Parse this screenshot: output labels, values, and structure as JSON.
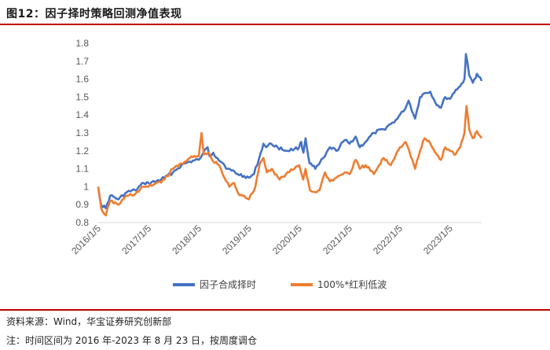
{
  "header": {
    "title": "图12：因子择时策略回测净值表现"
  },
  "footer": {
    "source": "资料来源：Wind，华宝证券研究创新部",
    "note": "注：时间区间为 2016 年-2023 年 8 月 23 日，按周度调仓"
  },
  "colors": {
    "accent": "#c00000",
    "series1": "#4472c4",
    "series2": "#ed7d31"
  },
  "chart_data": {
    "type": "line",
    "title": "",
    "xlabel": "",
    "ylabel": "",
    "ylim": [
      0.8,
      1.8
    ],
    "yticks": [
      "0.8",
      "0.9",
      "1",
      "1.1",
      "1.2",
      "1.3",
      "1.4",
      "1.5",
      "1.6",
      "1.7",
      "1.8"
    ],
    "xticks": [
      "2016/1/5",
      "2017/1/5",
      "2018/1/5",
      "2019/1/5",
      "2020/1/5",
      "2021/1/5",
      "2022/1/5",
      "2023/1/5"
    ],
    "grid": false,
    "legend": "bottom",
    "series": [
      {
        "name": "因子合成择时",
        "color": "#4472c4",
        "points": [
          [
            "2016/1/5",
            1.0
          ],
          [
            "2016/1/26",
            0.9
          ],
          [
            "2016/2/29",
            0.88
          ],
          [
            "2016/4/1",
            0.95
          ],
          [
            "2016/6/1",
            0.93
          ],
          [
            "2016/8/1",
            0.97
          ],
          [
            "2016/10/1",
            0.98
          ],
          [
            "2016/12/1",
            1.02
          ],
          [
            "2017/1/5",
            1.02
          ],
          [
            "2017/3/1",
            1.03
          ],
          [
            "2017/5/1",
            1.05
          ],
          [
            "2017/7/1",
            1.08
          ],
          [
            "2017/9/1",
            1.12
          ],
          [
            "2017/11/1",
            1.14
          ],
          [
            "2018/1/5",
            1.15
          ],
          [
            "2018/2/1",
            1.18
          ],
          [
            "2018/3/10",
            1.22
          ],
          [
            "2018/3/25",
            1.17
          ],
          [
            "2018/4/20",
            1.19
          ],
          [
            "2018/5/20",
            1.16
          ],
          [
            "2018/7/1",
            1.13
          ],
          [
            "2018/8/1",
            1.1
          ],
          [
            "2018/9/1",
            1.09
          ],
          [
            "2018/10/15",
            1.07
          ],
          [
            "2018/12/1",
            1.06
          ],
          [
            "2019/1/5",
            1.05
          ],
          [
            "2019/2/10",
            1.07
          ],
          [
            "2019/3/20",
            1.16
          ],
          [
            "2019/4/20",
            1.24
          ],
          [
            "2019/5/10",
            1.22
          ],
          [
            "2019/6/15",
            1.24
          ],
          [
            "2019/8/1",
            1.22
          ],
          [
            "2019/10/1",
            1.2
          ],
          [
            "2019/12/1",
            1.21
          ],
          [
            "2020/1/5",
            1.22
          ],
          [
            "2020/1/20",
            1.25
          ],
          [
            "2020/2/5",
            1.19
          ],
          [
            "2020/2/20",
            1.27
          ],
          [
            "2020/3/20",
            1.13
          ],
          [
            "2020/5/1",
            1.1
          ],
          [
            "2020/6/1",
            1.13
          ],
          [
            "2020/7/10",
            1.17
          ],
          [
            "2020/8/15",
            1.22
          ],
          [
            "2020/10/1",
            1.2
          ],
          [
            "2020/12/1",
            1.26
          ],
          [
            "2021/1/5",
            1.24
          ],
          [
            "2021/2/18",
            1.28
          ],
          [
            "2021/3/20",
            1.22
          ],
          [
            "2021/5/1",
            1.25
          ],
          [
            "2021/7/1",
            1.3
          ],
          [
            "2021/9/10",
            1.32
          ],
          [
            "2021/11/1",
            1.35
          ],
          [
            "2021/12/20",
            1.38
          ],
          [
            "2022/1/5",
            1.4
          ],
          [
            "2022/2/1",
            1.42
          ],
          [
            "2022/3/10",
            1.48
          ],
          [
            "2022/4/26",
            1.38
          ],
          [
            "2022/6/1",
            1.5
          ],
          [
            "2022/7/1",
            1.52
          ],
          [
            "2022/8/15",
            1.53
          ],
          [
            "2022/9/20",
            1.47
          ],
          [
            "2022/10/31",
            1.44
          ],
          [
            "2022/12/1",
            1.5
          ],
          [
            "2023/1/5",
            1.49
          ],
          [
            "2023/2/15",
            1.54
          ],
          [
            "2023/3/20",
            1.56
          ],
          [
            "2023/4/20",
            1.6
          ],
          [
            "2023/5/1",
            1.74
          ],
          [
            "2023/5/25",
            1.62
          ],
          [
            "2023/6/20",
            1.58
          ],
          [
            "2023/7/20",
            1.63
          ],
          [
            "2023/8/23",
            1.59
          ]
        ]
      },
      {
        "name": "100%*红利低波",
        "color": "#ed7d31",
        "points": [
          [
            "2016/1/5",
            1.0
          ],
          [
            "2016/1/26",
            0.88
          ],
          [
            "2016/2/29",
            0.84
          ],
          [
            "2016/4/1",
            0.92
          ],
          [
            "2016/6/1",
            0.9
          ],
          [
            "2016/8/1",
            0.95
          ],
          [
            "2016/10/1",
            0.96
          ],
          [
            "2016/12/1",
            1.0
          ],
          [
            "2017/1/5",
            1.0
          ],
          [
            "2017/3/1",
            1.02
          ],
          [
            "2017/5/1",
            1.04
          ],
          [
            "2017/7/1",
            1.1
          ],
          [
            "2017/9/1",
            1.13
          ],
          [
            "2017/11/1",
            1.16
          ],
          [
            "2018/1/5",
            1.17
          ],
          [
            "2018/1/25",
            1.3
          ],
          [
            "2018/2/10",
            1.18
          ],
          [
            "2018/3/15",
            1.19
          ],
          [
            "2018/4/20",
            1.14
          ],
          [
            "2018/6/1",
            1.12
          ],
          [
            "2018/7/10",
            1.05
          ],
          [
            "2018/8/15",
            1.0
          ],
          [
            "2018/9/20",
            1.02
          ],
          [
            "2018/10/20",
            0.96
          ],
          [
            "2018/12/1",
            0.95
          ],
          [
            "2019/1/5",
            0.93
          ],
          [
            "2019/2/20",
            1.0
          ],
          [
            "2019/3/25",
            1.13
          ],
          [
            "2019/4/20",
            1.16
          ],
          [
            "2019/5/15",
            1.08
          ],
          [
            "2019/6/20",
            1.1
          ],
          [
            "2019/8/15",
            1.04
          ],
          [
            "2019/10/1",
            1.07
          ],
          [
            "2019/12/1",
            1.1
          ],
          [
            "2020/1/5",
            1.12
          ],
          [
            "2020/2/3",
            1.04
          ],
          [
            "2020/2/20",
            1.1
          ],
          [
            "2020/3/23",
            0.98
          ],
          [
            "2020/5/1",
            0.97
          ],
          [
            "2020/6/1",
            0.98
          ],
          [
            "2020/7/10",
            1.08
          ],
          [
            "2020/8/15",
            1.03
          ],
          [
            "2020/10/1",
            1.05
          ],
          [
            "2020/12/1",
            1.08
          ],
          [
            "2021/1/5",
            1.07
          ],
          [
            "2021/2/18",
            1.15
          ],
          [
            "2021/3/20",
            1.1
          ],
          [
            "2021/5/1",
            1.12
          ],
          [
            "2021/7/1",
            1.07
          ],
          [
            "2021/9/10",
            1.16
          ],
          [
            "2021/11/1",
            1.12
          ],
          [
            "2021/12/20",
            1.2
          ],
          [
            "2022/1/5",
            1.22
          ],
          [
            "2022/2/15",
            1.25
          ],
          [
            "2022/3/15",
            1.2
          ],
          [
            "2022/4/26",
            1.1
          ],
          [
            "2022/6/1",
            1.2
          ],
          [
            "2022/7/5",
            1.27
          ],
          [
            "2022/8/15",
            1.24
          ],
          [
            "2022/9/20",
            1.19
          ],
          [
            "2022/10/31",
            1.15
          ],
          [
            "2022/12/1",
            1.22
          ],
          [
            "2023/1/5",
            1.2
          ],
          [
            "2023/2/15",
            1.18
          ],
          [
            "2023/3/20",
            1.22
          ],
          [
            "2023/4/20",
            1.3
          ],
          [
            "2023/5/5",
            1.45
          ],
          [
            "2023/5/25",
            1.32
          ],
          [
            "2023/6/20",
            1.27
          ],
          [
            "2023/7/20",
            1.31
          ],
          [
            "2023/8/23",
            1.27
          ]
        ]
      }
    ]
  }
}
